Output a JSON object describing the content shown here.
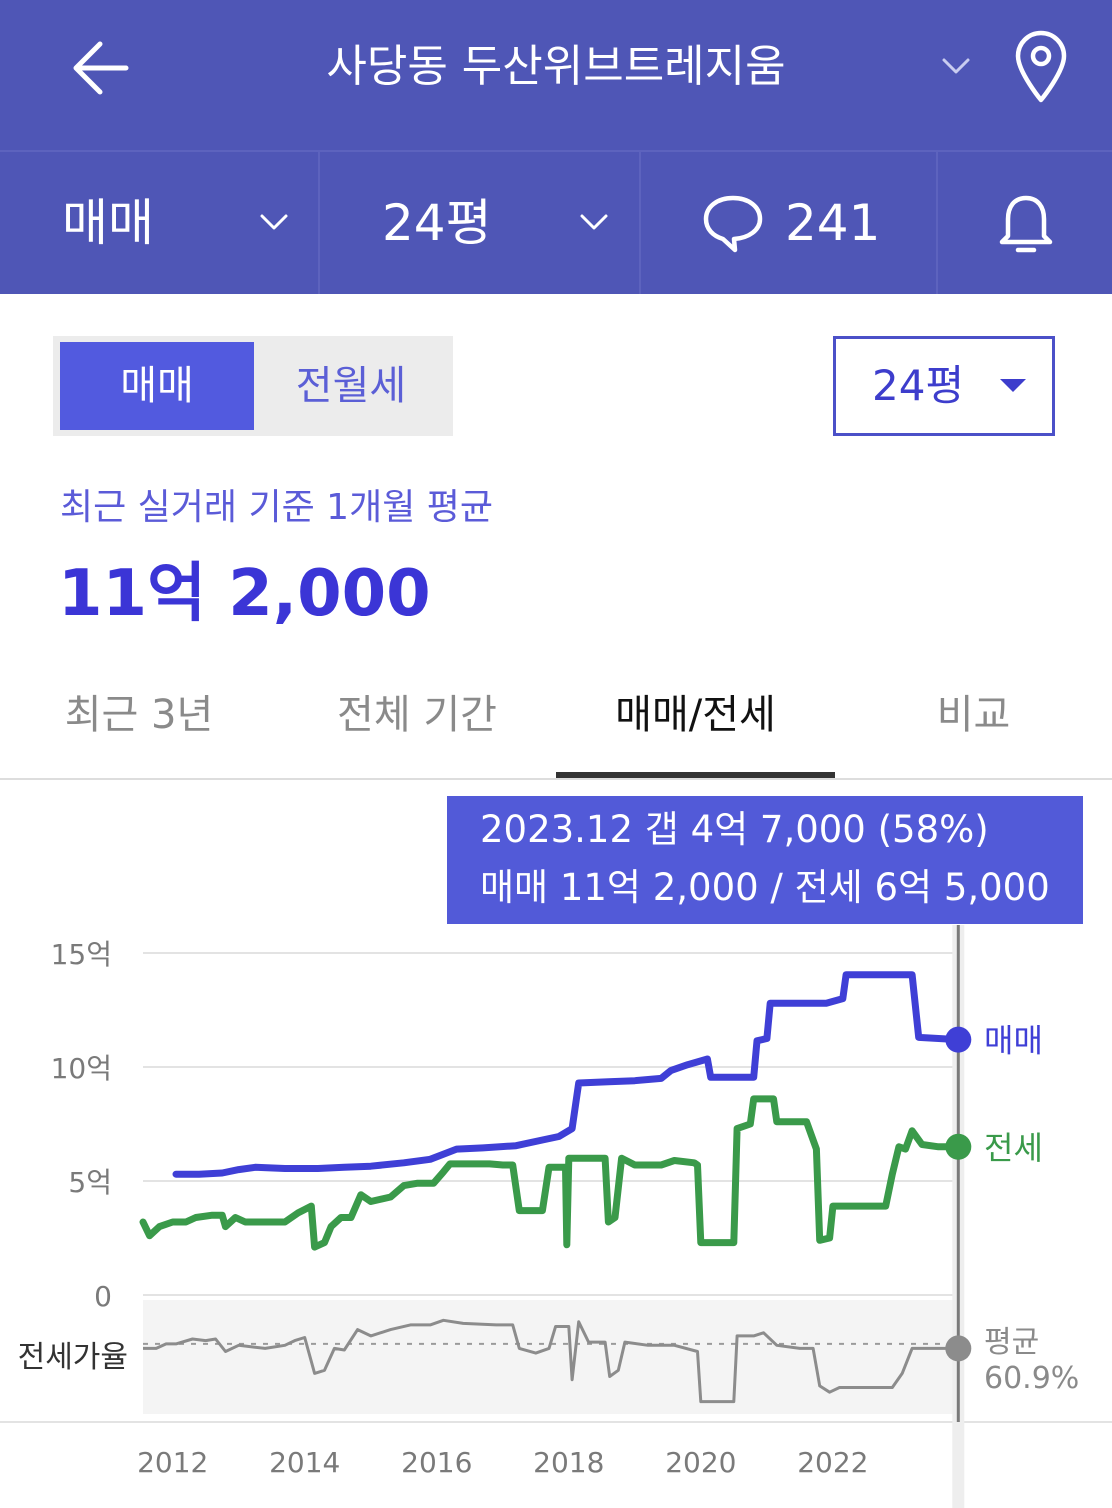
{
  "header": {
    "title": "사당동 두산위브트레지움",
    "back_icon": "arrow-left-icon",
    "dropdown_icon": "chevron-down-icon",
    "location_icon": "map-pin-icon",
    "bg_color": "#4f56b6"
  },
  "subbar": {
    "deal_type": "매매",
    "size": "24평",
    "comment_count": "241",
    "comment_icon": "speech-bubble-icon",
    "bell_icon": "bell-icon"
  },
  "segment": {
    "options": [
      "매매",
      "전월세"
    ],
    "selected": "매매",
    "active_color": "#525adf"
  },
  "size_select": {
    "value": "24평"
  },
  "summary": {
    "label": "최근 실거래 기준 1개월 평균",
    "price": "11억 2,000"
  },
  "tabs": [
    {
      "label": "최근 3년",
      "active": false
    },
    {
      "label": "전체 기간",
      "active": false
    },
    {
      "label": "매매/전세",
      "active": true
    },
    {
      "label": "비교",
      "active": false
    }
  ],
  "tooltip": {
    "line1": "2023.12  갭 4억 7,000 (58%)",
    "line2": "매매 11억 2,000 / 전세 6억 5,000"
  },
  "chart_data": {
    "type": "line",
    "x_unit": "year",
    "y_unit": "억",
    "ylim": [
      0,
      15
    ],
    "y_ticks": [
      {
        "value": 15,
        "label": "15억"
      },
      {
        "value": 10,
        "label": "10억"
      },
      {
        "value": 5,
        "label": "5억"
      },
      {
        "value": 0,
        "label": "0"
      }
    ],
    "x_ticks": [
      {
        "value": 2012,
        "label": "2012"
      },
      {
        "value": 2014,
        "label": "2014"
      },
      {
        "value": 2016,
        "label": "2016"
      },
      {
        "value": 2018,
        "label": "2018"
      },
      {
        "value": 2020,
        "label": "2020"
      },
      {
        "value": 2022,
        "label": "2022"
      }
    ],
    "xlim": [
      2011.55,
      2023.85
    ],
    "grid": true,
    "cursor": {
      "x": 2023.9
    },
    "series": [
      {
        "name": "매매",
        "color": "#3f3fd6",
        "points": [
          [
            2012.05,
            5.3
          ],
          [
            2012.4,
            5.3
          ],
          [
            2012.75,
            5.35
          ],
          [
            2013.0,
            5.5
          ],
          [
            2013.25,
            5.6
          ],
          [
            2013.7,
            5.55
          ],
          [
            2014.2,
            5.55
          ],
          [
            2014.6,
            5.6
          ],
          [
            2015.0,
            5.65
          ],
          [
            2015.5,
            5.8
          ],
          [
            2015.9,
            5.95
          ],
          [
            2016.3,
            6.4
          ],
          [
            2016.7,
            6.45
          ],
          [
            2017.2,
            6.55
          ],
          [
            2017.6,
            6.8
          ],
          [
            2017.85,
            6.95
          ],
          [
            2018.05,
            7.3
          ],
          [
            2018.15,
            9.3
          ],
          [
            2018.6,
            9.35
          ],
          [
            2019.0,
            9.4
          ],
          [
            2019.4,
            9.5
          ],
          [
            2019.55,
            9.85
          ],
          [
            2019.8,
            10.1
          ],
          [
            2020.1,
            10.35
          ],
          [
            2020.15,
            9.55
          ],
          [
            2020.55,
            9.55
          ],
          [
            2020.8,
            9.55
          ],
          [
            2020.85,
            11.15
          ],
          [
            2021.0,
            11.25
          ],
          [
            2021.05,
            12.8
          ],
          [
            2021.5,
            12.8
          ],
          [
            2021.9,
            12.8
          ],
          [
            2022.15,
            13.0
          ],
          [
            2022.2,
            14.05
          ],
          [
            2022.7,
            14.05
          ],
          [
            2023.2,
            14.05
          ],
          [
            2023.3,
            11.3
          ],
          [
            2023.6,
            11.25
          ],
          [
            2023.9,
            11.2
          ]
        ]
      },
      {
        "name": "전세",
        "color": "#3a9a4a",
        "points": [
          [
            2011.55,
            3.2
          ],
          [
            2011.65,
            2.6
          ],
          [
            2011.8,
            3.0
          ],
          [
            2012.0,
            3.2
          ],
          [
            2012.2,
            3.2
          ],
          [
            2012.35,
            3.4
          ],
          [
            2012.6,
            3.5
          ],
          [
            2012.75,
            3.5
          ],
          [
            2012.8,
            3.0
          ],
          [
            2012.95,
            3.4
          ],
          [
            2013.1,
            3.2
          ],
          [
            2013.4,
            3.2
          ],
          [
            2013.7,
            3.2
          ],
          [
            2013.9,
            3.6
          ],
          [
            2014.1,
            3.9
          ],
          [
            2014.15,
            2.1
          ],
          [
            2014.3,
            2.3
          ],
          [
            2014.4,
            3.0
          ],
          [
            2014.55,
            3.4
          ],
          [
            2014.7,
            3.4
          ],
          [
            2014.85,
            4.4
          ],
          [
            2015.0,
            4.1
          ],
          [
            2015.3,
            4.3
          ],
          [
            2015.5,
            4.8
          ],
          [
            2015.7,
            4.9
          ],
          [
            2015.95,
            4.9
          ],
          [
            2016.1,
            5.4
          ],
          [
            2016.2,
            5.75
          ],
          [
            2016.5,
            5.75
          ],
          [
            2016.8,
            5.75
          ],
          [
            2017.0,
            5.7
          ],
          [
            2017.15,
            5.7
          ],
          [
            2017.25,
            3.7
          ],
          [
            2017.4,
            3.7
          ],
          [
            2017.6,
            3.7
          ],
          [
            2017.7,
            5.6
          ],
          [
            2017.95,
            5.6
          ],
          [
            2017.97,
            2.2
          ],
          [
            2018.0,
            6.0
          ],
          [
            2018.3,
            6.0
          ],
          [
            2018.55,
            6.0
          ],
          [
            2018.6,
            3.2
          ],
          [
            2018.7,
            3.4
          ],
          [
            2018.8,
            6.0
          ],
          [
            2019.0,
            5.7
          ],
          [
            2019.4,
            5.7
          ],
          [
            2019.6,
            5.9
          ],
          [
            2019.9,
            5.8
          ],
          [
            2019.95,
            5.7
          ],
          [
            2020.0,
            2.3
          ],
          [
            2020.3,
            2.3
          ],
          [
            2020.5,
            2.3
          ],
          [
            2020.55,
            7.3
          ],
          [
            2020.75,
            7.5
          ],
          [
            2020.8,
            8.6
          ],
          [
            2021.1,
            8.6
          ],
          [
            2021.15,
            7.6
          ],
          [
            2021.45,
            7.6
          ],
          [
            2021.6,
            7.6
          ],
          [
            2021.75,
            6.4
          ],
          [
            2021.8,
            2.4
          ],
          [
            2021.95,
            2.5
          ],
          [
            2022.0,
            3.9
          ],
          [
            2022.5,
            3.9
          ],
          [
            2022.8,
            3.9
          ],
          [
            2022.9,
            5.3
          ],
          [
            2023.0,
            6.5
          ],
          [
            2023.1,
            6.4
          ],
          [
            2023.2,
            7.2
          ],
          [
            2023.35,
            6.6
          ],
          [
            2023.6,
            6.5
          ],
          [
            2023.9,
            6.5
          ]
        ]
      }
    ],
    "ratio_panel": {
      "label": "전세가율",
      "avg_label_line1": "평균",
      "avg_label_line2": "60.9%",
      "color": "#8c8c8c",
      "range": [
        25,
        80
      ],
      "avg": 60.9,
      "points": [
        [
          2011.55,
          58
        ],
        [
          2011.75,
          58
        ],
        [
          2011.9,
          60.9
        ],
        [
          2012.05,
          60.9
        ],
        [
          2012.3,
          64
        ],
        [
          2012.5,
          63
        ],
        [
          2012.65,
          64
        ],
        [
          2012.8,
          56
        ],
        [
          2013.0,
          60
        ],
        [
          2013.4,
          58
        ],
        [
          2013.7,
          60
        ],
        [
          2013.85,
          63
        ],
        [
          2014.0,
          65
        ],
        [
          2014.15,
          42
        ],
        [
          2014.3,
          44
        ],
        [
          2014.45,
          58
        ],
        [
          2014.6,
          57
        ],
        [
          2014.8,
          70
        ],
        [
          2015.0,
          66
        ],
        [
          2015.3,
          70
        ],
        [
          2015.6,
          73
        ],
        [
          2015.9,
          73
        ],
        [
          2016.1,
          76
        ],
        [
          2016.4,
          74
        ],
        [
          2016.9,
          73
        ],
        [
          2017.15,
          73
        ],
        [
          2017.25,
          58
        ],
        [
          2017.5,
          55
        ],
        [
          2017.7,
          58
        ],
        [
          2017.8,
          72
        ],
        [
          2018.0,
          72
        ],
        [
          2018.05,
          38
        ],
        [
          2018.15,
          75
        ],
        [
          2018.3,
          62
        ],
        [
          2018.55,
          62
        ],
        [
          2018.62,
          40
        ],
        [
          2018.75,
          44
        ],
        [
          2018.85,
          62
        ],
        [
          2019.2,
          60
        ],
        [
          2019.6,
          60
        ],
        [
          2019.95,
          56
        ],
        [
          2020.0,
          24
        ],
        [
          2020.3,
          24
        ],
        [
          2020.5,
          24
        ],
        [
          2020.55,
          66
        ],
        [
          2020.8,
          66
        ],
        [
          2020.95,
          68
        ],
        [
          2021.15,
          60
        ],
        [
          2021.5,
          58
        ],
        [
          2021.7,
          58
        ],
        [
          2021.8,
          34
        ],
        [
          2021.95,
          30
        ],
        [
          2022.1,
          33
        ],
        [
          2022.5,
          33
        ],
        [
          2022.9,
          33
        ],
        [
          2023.05,
          42
        ],
        [
          2023.2,
          58
        ],
        [
          2023.5,
          58
        ],
        [
          2023.9,
          58
        ]
      ]
    }
  }
}
